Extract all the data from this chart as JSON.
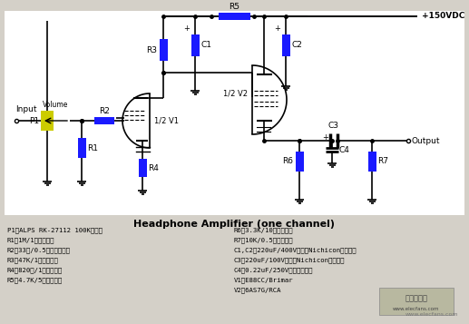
{
  "title": "Headphone Amplifier (one channel)",
  "bg_color": "#d4d0c8",
  "circuit_bg": "#ffffff",
  "wire_color": "#000000",
  "resistor_color": "#1a1aff",
  "cap_color": "#1a1aff",
  "potentiometer_color": "#cccc00",
  "text_color": "#000000",
  "bom_left": [
    "P1－ALPS RK-27112 100K电位器",
    "R1－1M/1瓦炭质电阻",
    "R2－33欧/0.5瓦金属膜电阻",
    "R3－47K/1瓦炭质电阻",
    "R4－820欧/1瓦炭质电阻",
    "R5－4.7K/5瓦线绕电阻"
  ],
  "bom_right": [
    "R6－3.3K/10瓦线绕电阻",
    "R7－10K/0.5瓦炭质电阻",
    "C1,C2－220uF/400V，日本Nichicon电解电容",
    "C3－220uF/100V，日本Nichicon电解电容",
    "C4－0.22uF/250V，聚丙烯电容",
    "V1－E88CC/Brimar",
    "V2－6AS7G/RCA"
  ],
  "watermark": "www.elecfans.com"
}
